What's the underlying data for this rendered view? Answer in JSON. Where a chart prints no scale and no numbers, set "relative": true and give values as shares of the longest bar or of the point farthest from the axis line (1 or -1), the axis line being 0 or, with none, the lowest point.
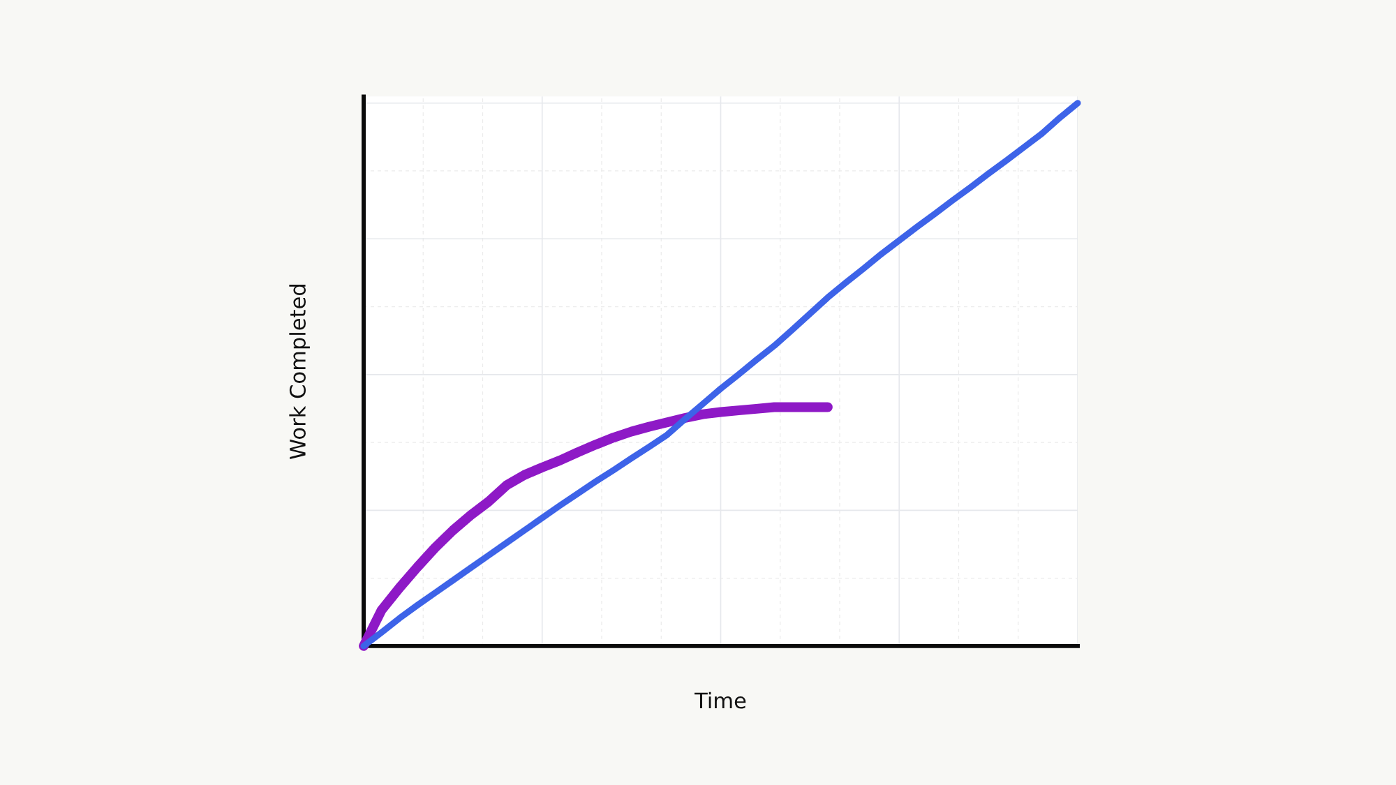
{
  "chart_data": {
    "type": "line",
    "xlabel": "Time",
    "ylabel": "Work Completed",
    "relative": true,
    "grid": true,
    "line_style": "solid",
    "categories": [
      null,
      null,
      null,
      null,
      null,
      null,
      null,
      null,
      null,
      null,
      null,
      null,
      null,
      null,
      null,
      null,
      null,
      null,
      null,
      null,
      null,
      null,
      null,
      null,
      null,
      null,
      null,
      null,
      null,
      null,
      null,
      null,
      null,
      null,
      null,
      null,
      null,
      null,
      null,
      null,
      null
    ],
    "series": [
      {
        "color": "#8e19c6",
        "values": [
          0,
          0.066,
          0.107,
          0.145,
          0.181,
          0.213,
          0.241,
          0.266,
          0.296,
          0.315,
          0.329,
          0.342,
          0.357,
          0.371,
          0.384,
          0.395,
          0.404,
          0.412,
          0.42,
          0.427,
          0.431,
          0.434,
          0.437,
          0.44,
          0.44,
          0.44,
          0.44,
          null,
          null,
          null,
          null,
          null,
          null,
          null,
          null,
          null,
          null,
          null,
          null,
          null,
          null
        ]
      },
      {
        "color": "#3d63e8",
        "values": [
          0,
          0.025,
          0.051,
          0.075,
          0.098,
          0.121,
          0.144,
          0.167,
          0.19,
          0.213,
          0.236,
          0.259,
          0.281,
          0.303,
          0.324,
          0.346,
          0.367,
          0.389,
          0.418,
          0.446,
          0.474,
          0.5,
          0.527,
          0.553,
          0.582,
          0.612,
          0.642,
          0.669,
          0.695,
          0.722,
          0.747,
          0.772,
          0.796,
          0.821,
          0.845,
          0.87,
          0.894,
          0.919,
          0.944,
          0.973,
          1
        ]
      }
    ]
  }
}
